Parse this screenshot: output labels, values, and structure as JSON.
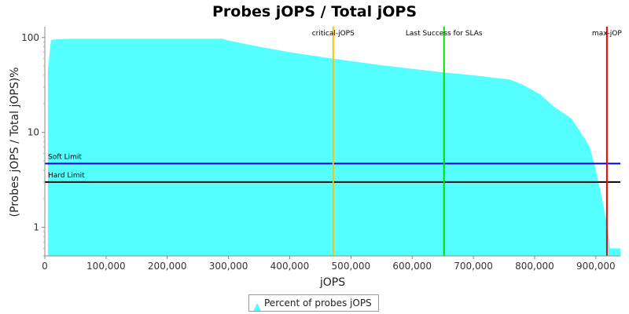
{
  "chart_data": {
    "type": "area",
    "title": "Probes jOPS / Total jOPS",
    "xlabel": "jOPS",
    "ylabel": "(Probes jOPS / Total jOPS)%",
    "xlim": [
      0,
      940000
    ],
    "ylim": [
      0.5,
      130
    ],
    "y_scale": "log",
    "grid": false,
    "legend_position": "bottom-center",
    "x_ticks": [
      0,
      100000,
      200000,
      300000,
      400000,
      500000,
      600000,
      700000,
      800000,
      900000
    ],
    "x_tick_labels": [
      "0",
      "100,000",
      "200,000",
      "300,000",
      "400,000",
      "500,000",
      "600,000",
      "700,000",
      "800,000",
      "900,000"
    ],
    "y_ticks": [
      1,
      10,
      100
    ],
    "y_tick_labels": [
      "1",
      "10",
      "100"
    ],
    "series": [
      {
        "name": "Percent of probes jOPS",
        "color": "#55ffff",
        "x": [
          5000,
          10000,
          20000,
          50000,
          100000,
          200000,
          290000,
          300000,
          350000,
          400000,
          470000,
          550000,
          650000,
          700000,
          760000,
          780000,
          810000,
          830000,
          860000,
          880000,
          890000,
          900000,
          910000,
          918000,
          923000,
          940000
        ],
        "y": [
          45,
          94,
          96,
          97,
          97,
          97,
          97,
          93,
          80,
          70,
          60,
          51,
          43,
          40,
          36,
          32,
          25,
          19,
          14,
          9,
          7,
          4,
          2,
          1.1,
          0.6,
          0.6
        ]
      }
    ],
    "horizontal_lines": [
      {
        "label": "Soft Limit",
        "y": 4.7,
        "color": "#0000dd"
      },
      {
        "label": "Hard Limit",
        "y": 3.0,
        "color": "#000000"
      }
    ],
    "vertical_lines": [
      {
        "label": "critical-jOPS",
        "x": 471000,
        "color": "#ffc000"
      },
      {
        "label": "Last Success for SLAs",
        "x": 652000,
        "color": "#00dd00"
      },
      {
        "label": "max-jOP",
        "x": 918000,
        "color": "#ee0000"
      }
    ]
  }
}
